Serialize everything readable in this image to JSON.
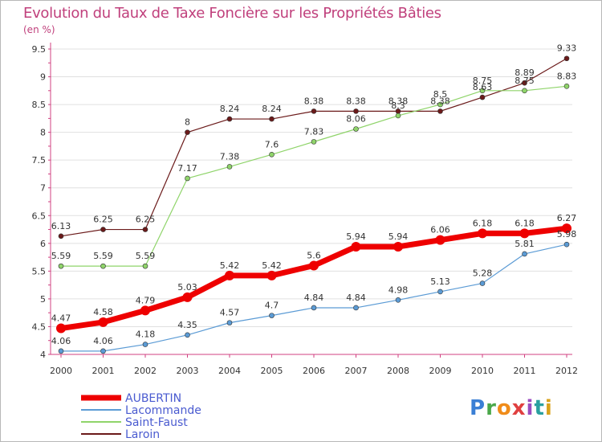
{
  "page": {
    "title": "Evolution du Taux de Taxe Foncière sur les Propriétés Bâties",
    "unit_label": "(en %)",
    "logo_text": "Proxiti"
  },
  "colors": {
    "title": "#c0407c",
    "axis": "#d04080",
    "grid": "#e0e0e0",
    "aubertin": "#ee0000",
    "lacommande": "#5b9bd5",
    "saint_faust": "#8fd46a",
    "laroin": "#6b1a1a"
  },
  "chart_data": {
    "type": "line",
    "title": "Evolution du Taux de Taxe Foncière sur les Propriétés Bâties",
    "xlabel": "",
    "ylabel": "(en %)",
    "x": [
      "2000",
      "2001",
      "2002",
      "2003",
      "2004",
      "2005",
      "2006",
      "2007",
      "2008",
      "2009",
      "2010",
      "2011",
      "2012"
    ],
    "ylim": [
      4,
      9.5
    ],
    "yticks": [
      4,
      4.5,
      5,
      5.5,
      6,
      6.5,
      7,
      7.5,
      8,
      8.5,
      9,
      9.5
    ],
    "grid": "horizontal",
    "legend": "bottom-left",
    "series": [
      {
        "name": "AUBERTIN",
        "color": "#ee0000",
        "width": 7,
        "labels": [
          "4.47",
          "4.58",
          "4.79",
          "5.03",
          "5.42",
          "5.42",
          "5.6",
          "5.94",
          "5.94",
          "6.06",
          "6.18",
          "6.18",
          "6.27"
        ],
        "values": [
          4.47,
          4.58,
          4.79,
          5.03,
          5.42,
          5.42,
          5.6,
          5.94,
          5.94,
          6.06,
          6.18,
          6.18,
          6.27
        ]
      },
      {
        "name": "Lacommande",
        "color": "#5b9bd5",
        "width": 1.2,
        "labels": [
          "4.06",
          "4.06",
          "4.18",
          "4.35",
          "4.57",
          "4.7",
          "4.84",
          "4.84",
          "4.98",
          "5.13",
          "5.28",
          "5.81",
          "5.98"
        ],
        "values": [
          4.06,
          4.06,
          4.18,
          4.35,
          4.57,
          4.7,
          4.84,
          4.84,
          4.98,
          5.13,
          5.28,
          5.81,
          5.98
        ]
      },
      {
        "name": "Saint-Faust",
        "color": "#8fd46a",
        "width": 1.2,
        "labels": [
          "5.59",
          "5.59",
          "5.59",
          "7.17",
          "7.38",
          "7.6",
          "7.83",
          "8.06",
          "8.3",
          "8.5",
          "8.75",
          "8.75",
          "8.83"
        ],
        "values": [
          5.59,
          5.59,
          5.59,
          7.17,
          7.38,
          7.6,
          7.83,
          8.06,
          8.3,
          8.5,
          8.75,
          8.75,
          8.83
        ]
      },
      {
        "name": "Laroin",
        "color": "#6b1a1a",
        "width": 1.2,
        "labels": [
          "6.13",
          "6.25",
          "6.25",
          "8",
          "8.24",
          "8.24",
          "8.38",
          "8.38",
          "8.38",
          "8.38",
          "8.63",
          "8.89",
          "9.33"
        ],
        "values": [
          6.13,
          6.25,
          6.25,
          8,
          8.24,
          8.24,
          8.38,
          8.38,
          8.38,
          8.38,
          8.63,
          8.89,
          9.33
        ]
      }
    ]
  }
}
